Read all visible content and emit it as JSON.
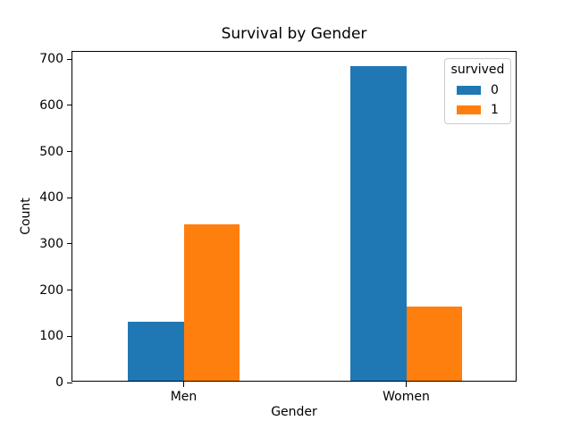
{
  "chart_data": {
    "type": "bar",
    "title": "Survival by Gender",
    "xlabel": "Gender",
    "ylabel": "Count",
    "categories": [
      "Men",
      "Women"
    ],
    "series": [
      {
        "name": "0",
        "color": "#1f77b4",
        "values": [
          127,
          682
        ]
      },
      {
        "name": "1",
        "color": "#ff7f0e",
        "values": [
          339,
          161
        ]
      }
    ],
    "legend": {
      "title": "survived",
      "position": "upper right"
    },
    "ylim": [
      0,
      716
    ],
    "yticks": [
      0,
      100,
      200,
      300,
      400,
      500,
      600,
      700
    ],
    "grid": false,
    "spine_color": "#000000",
    "background": "#ffffff"
  }
}
